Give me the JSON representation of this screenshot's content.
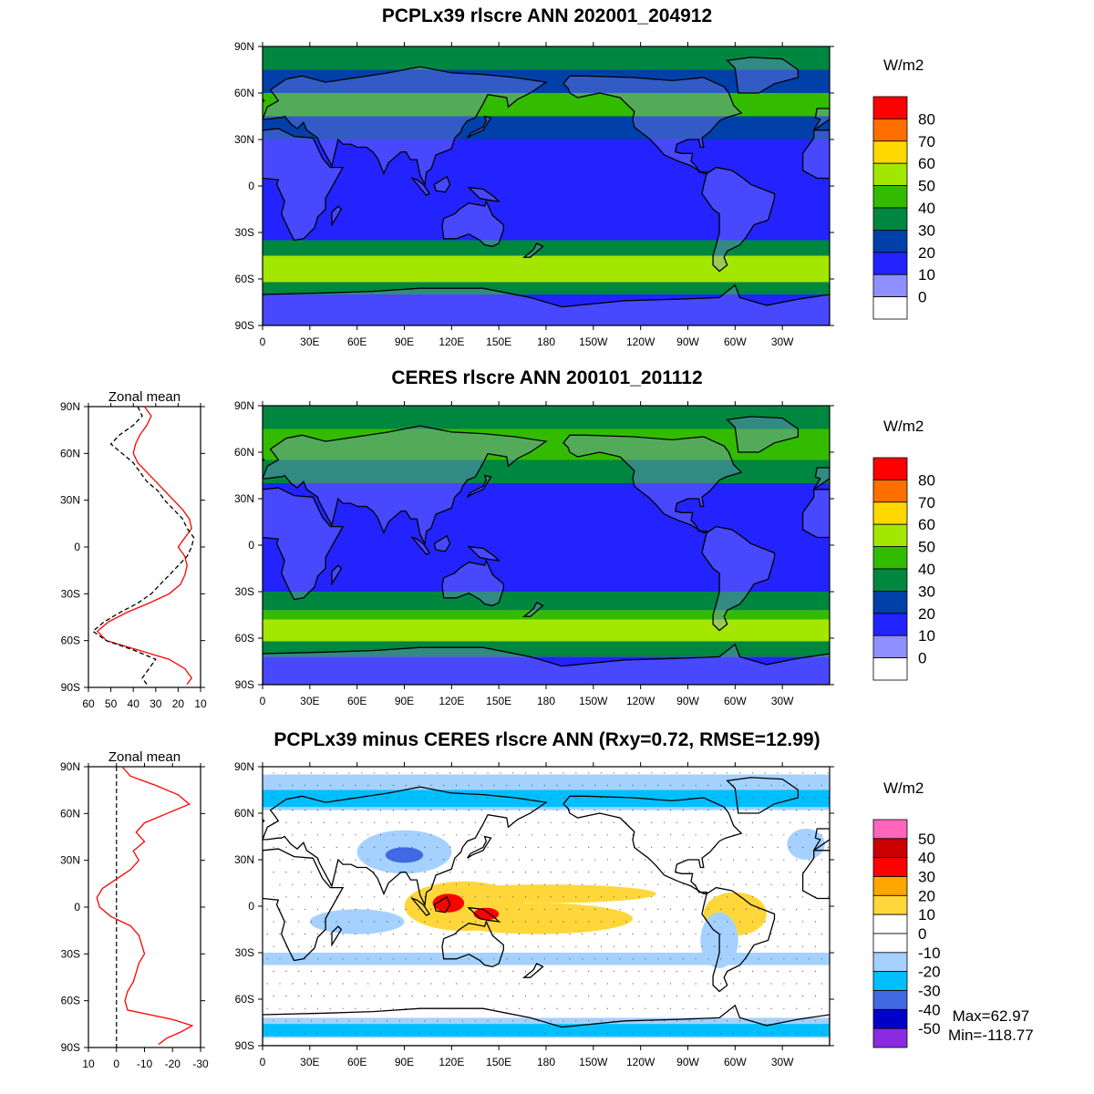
{
  "chart_data": [
    {
      "type": "heatmap",
      "title": "PCPLx39 rlscre ANN 202001_204912",
      "units": "W/m2",
      "x_ticks": [
        "0",
        "30E",
        "60E",
        "90E",
        "120E",
        "150E",
        "180",
        "150W",
        "120W",
        "90W",
        "60W",
        "30W"
      ],
      "y_ticks": [
        "90N",
        "60N",
        "30N",
        "0",
        "30S",
        "60S",
        "90S"
      ],
      "colorbar": {
        "labels": [
          "80",
          "70",
          "60",
          "50",
          "40",
          "30",
          "20",
          "10",
          "0"
        ],
        "colors": [
          "#ff0000",
          "#ff6f00",
          "#ffd800",
          "#a3e600",
          "#33bb00",
          "#00873f",
          "#0040a8",
          "#2323ff",
          "#8f8fff",
          "#ffffff"
        ]
      },
      "zonal_bands": [
        {
          "lat": [
            90,
            75
          ],
          "value": 35
        },
        {
          "lat": [
            75,
            60
          ],
          "value": 25
        },
        {
          "lat": [
            60,
            45
          ],
          "value": 42
        },
        {
          "lat": [
            45,
            30
          ],
          "value": 22
        },
        {
          "lat": [
            30,
            15
          ],
          "value": 12
        },
        {
          "lat": [
            15,
            -15
          ],
          "value": 18
        },
        {
          "lat": [
            -15,
            -35
          ],
          "value": 15
        },
        {
          "lat": [
            -35,
            -45
          ],
          "value": 30
        },
        {
          "lat": [
            -45,
            -62
          ],
          "value": 52
        },
        {
          "lat": [
            -62,
            -70
          ],
          "value": 35
        },
        {
          "lat": [
            -70,
            -90
          ],
          "value": 12
        }
      ]
    },
    {
      "type": "heatmap",
      "title": "CERES rlscre ANN 200101_201112",
      "units": "W/m2",
      "x_ticks": [
        "0",
        "30E",
        "60E",
        "90E",
        "120E",
        "150E",
        "180",
        "150W",
        "120W",
        "90W",
        "60W",
        "30W"
      ],
      "y_ticks": [
        "90N",
        "60N",
        "30N",
        "0",
        "30S",
        "60S",
        "90S"
      ],
      "colorbar": {
        "labels": [
          "80",
          "70",
          "60",
          "50",
          "40",
          "30",
          "20",
          "10",
          "0"
        ],
        "colors": [
          "#ff0000",
          "#ff6f00",
          "#ffd800",
          "#a3e600",
          "#33bb00",
          "#00873f",
          "#0040a8",
          "#2323ff",
          "#8f8fff",
          "#ffffff"
        ]
      },
      "zonal_bands": [
        {
          "lat": [
            90,
            75
          ],
          "value": 38
        },
        {
          "lat": [
            75,
            55
          ],
          "value": 42
        },
        {
          "lat": [
            55,
            40
          ],
          "value": 35
        },
        {
          "lat": [
            40,
            20
          ],
          "value": 18
        },
        {
          "lat": [
            20,
            -10
          ],
          "value": 13
        },
        {
          "lat": [
            -10,
            -30
          ],
          "value": 16
        },
        {
          "lat": [
            -30,
            -42
          ],
          "value": 30
        },
        {
          "lat": [
            -42,
            -48
          ],
          "value": 42
        },
        {
          "lat": [
            -48,
            -62
          ],
          "value": 55
        },
        {
          "lat": [
            -62,
            -72
          ],
          "value": 38
        },
        {
          "lat": [
            -72,
            -90
          ],
          "value": 18
        }
      ],
      "zonal_mean": {
        "title": "Zonal mean",
        "x_ticks": [
          "60",
          "50",
          "40",
          "30",
          "20",
          "10"
        ],
        "xlim": [
          60,
          10
        ],
        "y_ticks": [
          "90N",
          "60N",
          "30N",
          "0",
          "30S",
          "60S",
          "90S"
        ],
        "series": [
          {
            "color": "#ff0000",
            "dash": "none",
            "lat": [
              90,
              84,
              78,
              72,
              66,
              60,
              54,
              48,
              42,
              36,
              30,
              24,
              18,
              12,
              6,
              0,
              -6,
              -12,
              -18,
              -24,
              -30,
              -36,
              -42,
              -48,
              -54,
              -60,
              -66,
              -72,
              -78,
              -84,
              -88
            ],
            "value": [
              35,
              32,
              34,
              37,
              39,
              40,
              38,
              34,
              30,
              26,
              22,
              18,
              15,
              14,
              17,
              20,
              17,
              16,
              17,
              19,
              24,
              33,
              43,
              51,
              56,
              52,
              38,
              24,
              17,
              14,
              16
            ]
          },
          {
            "color": "#000000",
            "dash": "5,3",
            "lat": [
              90,
              84,
              78,
              72,
              66,
              60,
              54,
              48,
              42,
              36,
              30,
              24,
              18,
              12,
              6,
              0,
              -6,
              -12,
              -18,
              -24,
              -30,
              -36,
              -42,
              -48,
              -54,
              -60,
              -66,
              -72,
              -78,
              -84,
              -88
            ],
            "value": [
              38,
              36,
              40,
              46,
              50,
              45,
              40,
              37,
              34,
              29,
              26,
              22,
              18,
              16,
              13,
              14,
              16,
              20,
              24,
              28,
              32,
              38,
              46,
              53,
              58,
              52,
              40,
              30,
              33,
              36,
              34
            ]
          }
        ]
      }
    },
    {
      "type": "heatmap",
      "title": "PCPLx39 minus CERES rlscre ANN (Rxy=0.72, RMSE=12.99)",
      "units": "W/m2",
      "x_ticks": [
        "0",
        "30E",
        "60E",
        "90E",
        "120E",
        "150E",
        "180",
        "150W",
        "120W",
        "90W",
        "60W",
        "30W"
      ],
      "y_ticks": [
        "90N",
        "60N",
        "30N",
        "0",
        "30S",
        "60S",
        "90S"
      ],
      "colorbar": {
        "labels": [
          "50",
          "40",
          "30",
          "20",
          "10",
          "0",
          "-10",
          "-20",
          "-30",
          "-40",
          "-50"
        ],
        "colors": [
          "#ff66bb",
          "#cc0000",
          "#ff0000",
          "#ffa500",
          "#ffd73a",
          "#ffffff",
          "#ffffff",
          "#a4d1ff",
          "#00bfff",
          "#4169e1",
          "#0000c8",
          "#8a2be2"
        ]
      },
      "stats": {
        "max": "Max=62.97",
        "min": "Min=-118.77"
      },
      "zonal_mean": {
        "title": "Zonal mean",
        "x_ticks": [
          "10",
          "0",
          "-10",
          "-20",
          "-30"
        ],
        "xlim": [
          10,
          -30
        ],
        "y_ticks": [
          "90N",
          "60N",
          "30N",
          "0",
          "30S",
          "60S",
          "90S"
        ],
        "zero_line": 0,
        "series": [
          {
            "color": "#ff0000",
            "dash": "none",
            "lat": [
              90,
              84,
              78,
              72,
              66,
              60,
              54,
              48,
              42,
              36,
              30,
              24,
              18,
              12,
              6,
              0,
              -6,
              -12,
              -18,
              -24,
              -30,
              -36,
              -42,
              -48,
              -54,
              -60,
              -66,
              -72,
              -76,
              -80,
              -84,
              -88
            ],
            "value": [
              -2,
              -5,
              -14,
              -22,
              -26,
              -18,
              -10,
              -7,
              -10,
              -6,
              -8,
              -5,
              0,
              5,
              7,
              6,
              2,
              -5,
              -8,
              -9,
              -10,
              -8,
              -7,
              -6,
              -4,
              -3,
              -4,
              -20,
              -27,
              -23,
              -18,
              -15
            ]
          }
        ]
      }
    }
  ]
}
